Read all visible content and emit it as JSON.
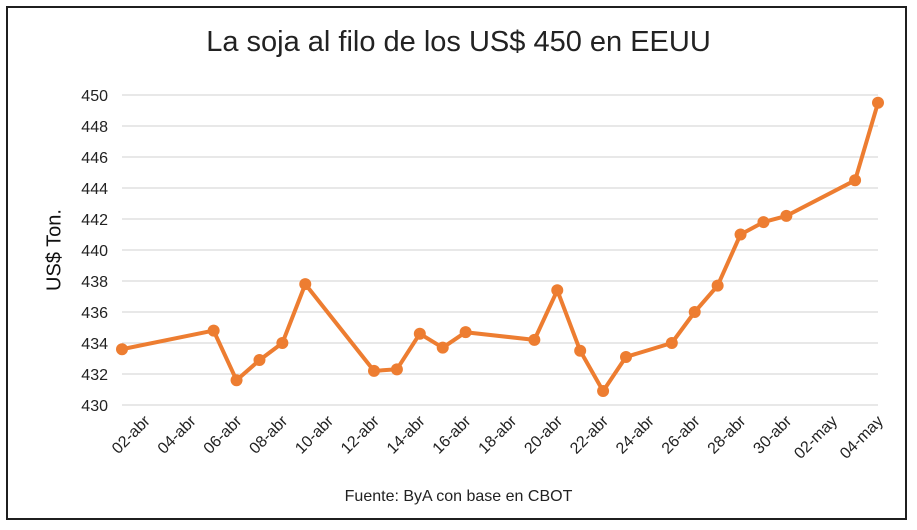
{
  "chart_data": {
    "type": "line",
    "title": "La soja al filo de los US$ 450 en EEUU",
    "ylabel": "US$ Ton.",
    "xlabel": "",
    "source": "Fuente: ByA con base en CBOT",
    "x_tick_labels": [
      "02-abr",
      "04-abr",
      "06-abr",
      "08-abr",
      "10-abr",
      "12-abr",
      "14-abr",
      "16-abr",
      "18-abr",
      "20-abr",
      "22-abr",
      "24-abr",
      "26-abr",
      "28-abr",
      "30-abr",
      "02-may",
      "04-may"
    ],
    "y_ticks": [
      430,
      432,
      434,
      436,
      438,
      440,
      442,
      444,
      446,
      448,
      450
    ],
    "ylim": [
      430,
      450
    ],
    "xlim": [
      "01-abr",
      "04-may"
    ],
    "grid": true,
    "series_color": "#ED7D31",
    "series": [
      {
        "name": "",
        "points": [
          {
            "x": "01-abr",
            "y": 433.6
          },
          {
            "x": "05-abr",
            "y": 434.8
          },
          {
            "x": "06-abr",
            "y": 431.6
          },
          {
            "x": "07-abr",
            "y": 432.9
          },
          {
            "x": "08-abr",
            "y": 434.0
          },
          {
            "x": "09-abr",
            "y": 437.8
          },
          {
            "x": "12-abr",
            "y": 432.2
          },
          {
            "x": "13-abr",
            "y": 432.3
          },
          {
            "x": "14-abr",
            "y": 434.6
          },
          {
            "x": "15-abr",
            "y": 433.7
          },
          {
            "x": "16-abr",
            "y": 434.7
          },
          {
            "x": "19-abr",
            "y": 434.2
          },
          {
            "x": "20-abr",
            "y": 437.4
          },
          {
            "x": "21-abr",
            "y": 433.5
          },
          {
            "x": "22-abr",
            "y": 430.9
          },
          {
            "x": "23-abr",
            "y": 433.1
          },
          {
            "x": "25-abr",
            "y": 434.0
          },
          {
            "x": "26-abr",
            "y": 436.0
          },
          {
            "x": "27-abr",
            "y": 437.7
          },
          {
            "x": "28-abr",
            "y": 441.0
          },
          {
            "x": "29-abr",
            "y": 441.8
          },
          {
            "x": "30-abr",
            "y": 442.2
          },
          {
            "x": "03-may",
            "y": 444.5
          },
          {
            "x": "04-may",
            "y": 449.5
          }
        ]
      }
    ]
  }
}
